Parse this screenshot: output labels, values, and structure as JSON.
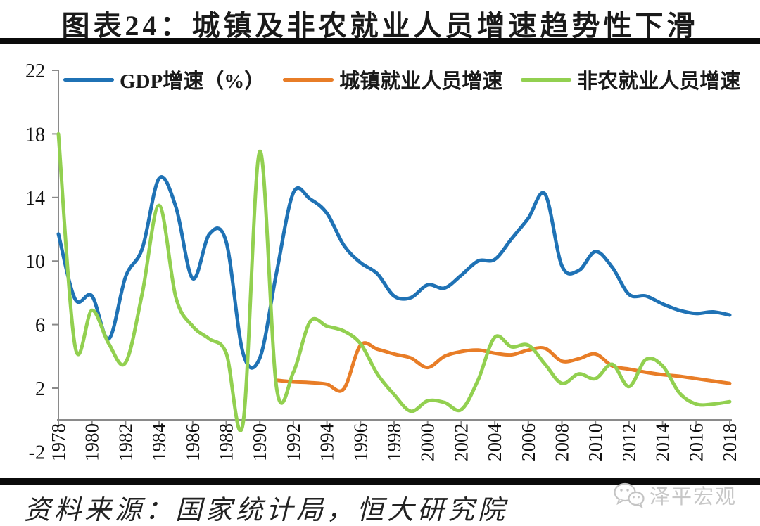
{
  "title": "图表24：城镇及非农就业人员增速趋势性下滑",
  "source_note": "资料来源：国家统计局，恒大研究院",
  "watermark": {
    "label": "泽平宏观",
    "icon": "wechat-icon"
  },
  "colors": {
    "gdp": "#1F72B5",
    "urban": "#E87D27",
    "nonfarm": "#92D050",
    "axis": "#8A8A8A",
    "tick_text": "#111111",
    "bar": "#0B0B0B",
    "watermark": "#C7C7C7"
  },
  "chart_data": {
    "type": "line",
    "smooth": true,
    "legend_position": "top",
    "grid": false,
    "x": [
      1978,
      1979,
      1980,
      1981,
      1982,
      1983,
      1984,
      1985,
      1986,
      1987,
      1988,
      1989,
      1990,
      1991,
      1992,
      1993,
      1994,
      1995,
      1996,
      1997,
      1998,
      1999,
      2000,
      2001,
      2002,
      2003,
      2004,
      2005,
      2006,
      2007,
      2008,
      2009,
      2010,
      2011,
      2012,
      2013,
      2014,
      2015,
      2016,
      2017,
      2018
    ],
    "x_tick_step": 2,
    "ylim": [
      -2,
      22
    ],
    "yticks": [
      -2,
      2,
      6,
      10,
      14,
      18,
      22
    ],
    "series": [
      {
        "name": "GDP增速（%）",
        "color_key": "gdp",
        "values": [
          11.7,
          7.6,
          7.8,
          5.1,
          9.0,
          10.8,
          15.2,
          13.4,
          8.9,
          11.7,
          11.2,
          4.2,
          3.9,
          9.3,
          14.3,
          13.9,
          13.0,
          11.0,
          9.9,
          9.2,
          7.8,
          7.7,
          8.5,
          8.3,
          9.1,
          10.0,
          10.1,
          11.4,
          12.7,
          14.2,
          9.7,
          9.4,
          10.6,
          9.6,
          7.9,
          7.8,
          7.3,
          6.9,
          6.7,
          6.8,
          6.6
        ]
      },
      {
        "name": "城镇就业人员增速",
        "color_key": "urban",
        "values": [
          null,
          null,
          null,
          null,
          null,
          null,
          null,
          null,
          null,
          null,
          null,
          null,
          null,
          2.5,
          2.4,
          2.35,
          2.25,
          1.95,
          4.7,
          4.45,
          4.15,
          3.9,
          3.3,
          4.0,
          4.3,
          4.4,
          4.2,
          4.1,
          4.4,
          4.5,
          3.7,
          3.85,
          4.15,
          3.4,
          3.2,
          3.0,
          2.85,
          2.75,
          2.6,
          2.45,
          2.3
        ]
      },
      {
        "name": "非农就业人员增速",
        "color_key": "nonfarm",
        "values": [
          18.0,
          4.6,
          6.9,
          4.8,
          3.6,
          8.0,
          13.5,
          7.7,
          5.9,
          5.1,
          4.2,
          -0.2,
          16.9,
          2.0,
          3.0,
          6.2,
          5.9,
          5.6,
          4.8,
          2.9,
          1.6,
          0.55,
          1.2,
          1.1,
          0.65,
          2.5,
          5.2,
          4.6,
          4.7,
          3.5,
          2.3,
          2.9,
          2.6,
          3.5,
          2.1,
          3.8,
          3.4,
          1.7,
          1.0,
          1.0,
          1.15
        ]
      }
    ]
  }
}
